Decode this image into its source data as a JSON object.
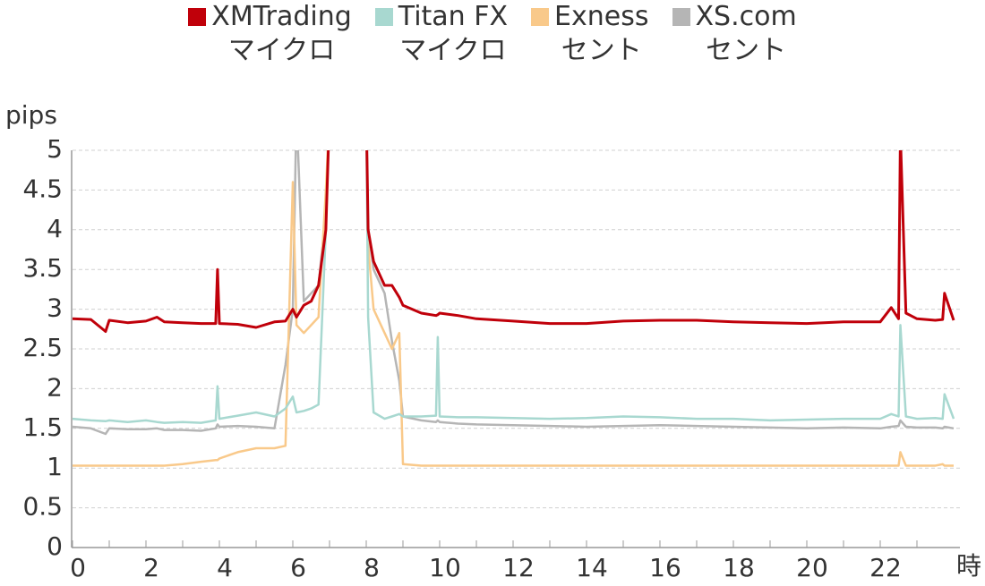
{
  "chart_data": {
    "type": "line",
    "x_label": "時",
    "y_label": "pips",
    "x": [
      0,
      0.5,
      0.9,
      1,
      1.5,
      2,
      2.3,
      2.5,
      3,
      3.5,
      3.9,
      3.95,
      4,
      4.5,
      5,
      5.5,
      5.8,
      6,
      6.1,
      6.3,
      6.5,
      6.7,
      6.9,
      7,
      7.5,
      8,
      8.05,
      8.2,
      8.5,
      8.7,
      8.9,
      9,
      9.5,
      9.9,
      9.95,
      10,
      10.5,
      11,
      12,
      13,
      14,
      15,
      16,
      17,
      18,
      19,
      20,
      21,
      22,
      22.3,
      22.5,
      22.55,
      22.7,
      23,
      23.5,
      23.7,
      23.75,
      24
    ],
    "series": [
      {
        "name": "XMTrading\nマイクロ",
        "color": "#c0000a",
        "values": [
          2.88,
          2.87,
          2.72,
          2.86,
          2.83,
          2.85,
          2.9,
          2.84,
          2.83,
          2.82,
          2.82,
          3.5,
          2.82,
          2.81,
          2.77,
          2.84,
          2.85,
          3.0,
          2.9,
          3.05,
          3.1,
          3.3,
          4.0,
          5.5,
          null,
          5.5,
          4.0,
          3.6,
          3.3,
          3.3,
          3.15,
          3.05,
          2.95,
          2.92,
          2.93,
          2.95,
          2.92,
          2.88,
          2.85,
          2.82,
          2.82,
          2.85,
          2.86,
          2.86,
          2.84,
          2.83,
          2.82,
          2.84,
          2.84,
          3.02,
          2.88,
          5.2,
          2.95,
          2.88,
          2.86,
          2.87,
          3.2,
          2.86
        ]
      },
      {
        "name": "Titan FX\nマイクロ",
        "color": "#a8d8d0",
        "values": [
          1.62,
          1.6,
          1.59,
          1.6,
          1.58,
          1.6,
          1.58,
          1.57,
          1.58,
          1.57,
          1.6,
          2.03,
          1.62,
          1.66,
          1.7,
          1.65,
          1.75,
          1.9,
          1.7,
          1.72,
          1.75,
          1.8,
          4.0,
          5.5,
          null,
          5.5,
          2.9,
          1.7,
          1.62,
          1.65,
          1.68,
          1.65,
          1.65,
          1.66,
          2.65,
          1.65,
          1.64,
          1.64,
          1.63,
          1.62,
          1.63,
          1.65,
          1.64,
          1.62,
          1.62,
          1.6,
          1.61,
          1.62,
          1.62,
          1.68,
          1.65,
          2.8,
          1.65,
          1.62,
          1.63,
          1.62,
          1.93,
          1.62
        ]
      },
      {
        "name": "Exness\nセント",
        "color": "#f9c98a",
        "values": [
          1.03,
          1.03,
          1.03,
          1.03,
          1.03,
          1.03,
          1.03,
          1.03,
          1.05,
          1.08,
          1.1,
          1.1,
          1.12,
          1.2,
          1.25,
          1.25,
          1.28,
          4.6,
          2.8,
          2.7,
          2.8,
          2.9,
          4.5,
          5.5,
          null,
          5.5,
          3.8,
          3.0,
          2.7,
          2.5,
          2.7,
          1.05,
          1.03,
          1.03,
          1.03,
          1.03,
          1.03,
          1.03,
          1.03,
          1.03,
          1.03,
          1.03,
          1.03,
          1.03,
          1.03,
          1.03,
          1.03,
          1.03,
          1.03,
          1.03,
          1.03,
          1.2,
          1.03,
          1.03,
          1.03,
          1.05,
          1.03,
          1.03
        ]
      },
      {
        "name": "XS.com\nセント",
        "color": "#b5b5b5",
        "values": [
          1.52,
          1.5,
          1.43,
          1.5,
          1.49,
          1.49,
          1.5,
          1.48,
          1.48,
          1.47,
          1.5,
          1.55,
          1.52,
          1.53,
          1.52,
          1.5,
          2.3,
          3.0,
          5.5,
          3.1,
          3.2,
          3.3,
          4.2,
          5.5,
          null,
          5.5,
          4.0,
          3.5,
          3.2,
          2.6,
          2.1,
          1.65,
          1.6,
          1.58,
          1.6,
          1.58,
          1.56,
          1.55,
          1.54,
          1.53,
          1.52,
          1.53,
          1.54,
          1.53,
          1.52,
          1.51,
          1.5,
          1.51,
          1.5,
          1.52,
          1.53,
          1.6,
          1.52,
          1.51,
          1.51,
          1.5,
          1.52,
          1.5
        ]
      }
    ],
    "xlim": [
      0,
      24
    ],
    "xticks": [
      0,
      2,
      4,
      6,
      8,
      10,
      12,
      14,
      16,
      18,
      20,
      22
    ],
    "ylim": [
      0,
      5
    ],
    "yticks": [
      0,
      0.5,
      1,
      1.5,
      2,
      2.5,
      3,
      3.5,
      4,
      4.5,
      5
    ],
    "grid": true,
    "legend": "top"
  }
}
